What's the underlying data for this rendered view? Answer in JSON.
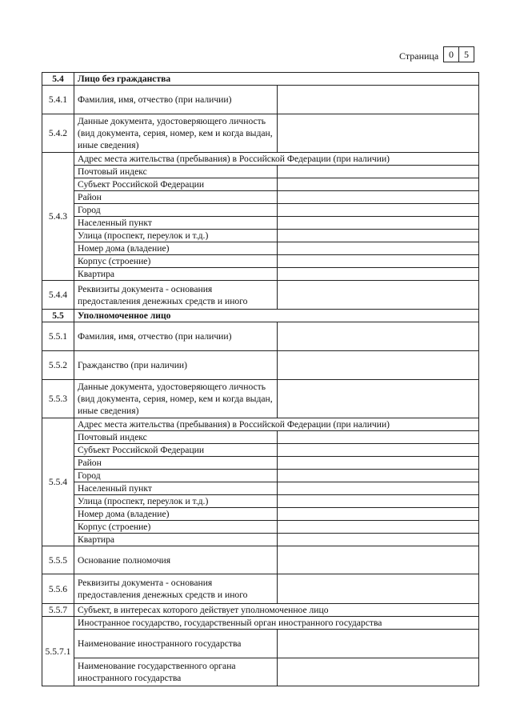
{
  "page": {
    "label": "Страница",
    "digits": [
      "0",
      "5"
    ]
  },
  "rows": [
    {
      "type": "section",
      "num": "5.4",
      "text": "Лицо без гражданства",
      "h": 16
    },
    {
      "type": "field",
      "num": "5.4.1",
      "text": "Фамилия, имя, отчество (при наличии)",
      "h": 36
    },
    {
      "type": "field",
      "num": "5.4.2",
      "text": "Данные документа, удостоверяющего личность (вид документа, серия, номер, кем и когда выдан, иные сведения)",
      "h": 48
    },
    {
      "type": "group",
      "num": "5.4.3",
      "header": "Адрес места жительства (пребывания) в Российской Федерации (при наличии)",
      "h": 15,
      "items": [
        "Почтовый индекс",
        "Субъект Российской Федерации",
        "Район",
        "Город",
        "Населенный пункт",
        "Улица (проспект, переулок и т.д.)",
        "Номер дома (владение)",
        "Корпус (строение)",
        "Квартира"
      ],
      "ih": 15.7
    },
    {
      "type": "field",
      "num": "5.4.4",
      "text": "Реквизиты документа - основания предоставления денежных средств и иного",
      "h": 36
    },
    {
      "type": "section",
      "num": "5.5",
      "text": "Уполномоченное лицо",
      "h": 16
    },
    {
      "type": "field",
      "num": "5.5.1",
      "text": "Фамилия, имя, отчество (при наличии)",
      "h": 36
    },
    {
      "type": "field",
      "num": "5.5.2",
      "text": "Гражданство (при наличии)",
      "h": 36
    },
    {
      "type": "field",
      "num": "5.5.3",
      "text": "Данные документа, удостоверяющего личность (вид документа, серия, номер, кем и когда выдан, иные сведения)",
      "h": 48
    },
    {
      "type": "group",
      "num": "5.5.4",
      "header": "Адрес места жительства (пребывания) в Российской Федерации (при наличии)",
      "h": 16,
      "items": [
        "Почтовый индекс",
        "Субъект Российской Федерации",
        "Район",
        "Город",
        "Населенный пункт",
        "Улица (проспект, переулок и т.д.)",
        "Номер дома (владение)",
        "Корпус (строение)",
        "Квартира"
      ],
      "ih": 15.8
    },
    {
      "type": "field",
      "num": "5.5.5",
      "text": "Основание полномочия",
      "h": 35
    },
    {
      "type": "field",
      "num": "5.5.6",
      "text": "Реквизиты документа - основания предоставления денежных средств и иного",
      "h": 37
    },
    {
      "type": "wide",
      "num": "5.5.7",
      "text": "Субъект, в интересах которого действует уполномоченное лицо",
      "h": 16
    },
    {
      "type": "group",
      "num": "5.5.7.1",
      "header": "Иностранное государство, государственный орган иностранного государства",
      "h": 15,
      "items": [
        "Наименование иностранного государства",
        "Наименование государственного органа иностранного государства"
      ],
      "ih": 35.5
    }
  ]
}
